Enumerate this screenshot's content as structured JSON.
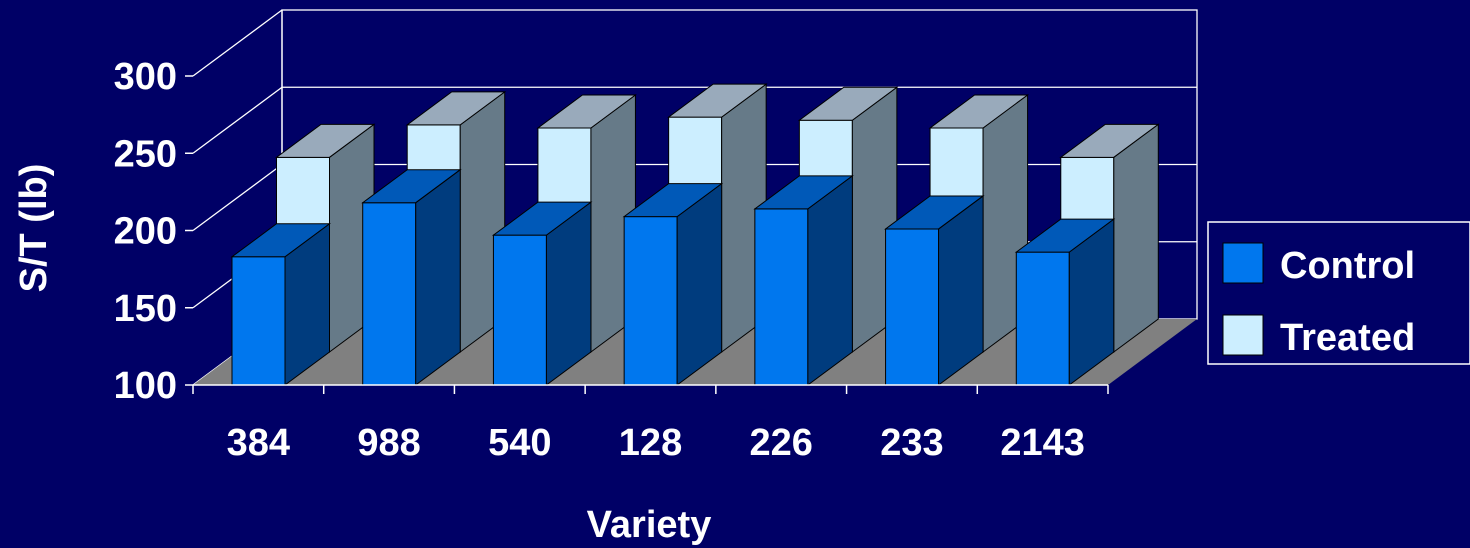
{
  "chart_data": {
    "type": "bar",
    "title": "",
    "xlabel": "Variety",
    "ylabel": "S/T (lb)",
    "categories": [
      "384",
      "988",
      "540",
      "128",
      "226",
      "233",
      "2143"
    ],
    "series": [
      {
        "name": "Control",
        "values": [
          183,
          218,
          197,
          209,
          214,
          201,
          186
        ]
      },
      {
        "name": "Treated",
        "values": [
          226,
          247,
          245,
          252,
          250,
          245,
          226
        ]
      }
    ],
    "ylim": [
      100,
      300
    ],
    "yticks": [
      "100",
      "150",
      "200",
      "250",
      "300"
    ],
    "grid": true,
    "legend": "right",
    "colors": {
      "background": "#000066",
      "control_front": "#0077EE",
      "control_top": "#0059B8",
      "control_side": "#003C7E",
      "treated_front": "#CCEEFF",
      "treated_top": "#99AABB",
      "treated_side": "#667A88",
      "floor": "#808080",
      "grid": "#FFFFFF",
      "text": "#FFFFFF"
    }
  }
}
